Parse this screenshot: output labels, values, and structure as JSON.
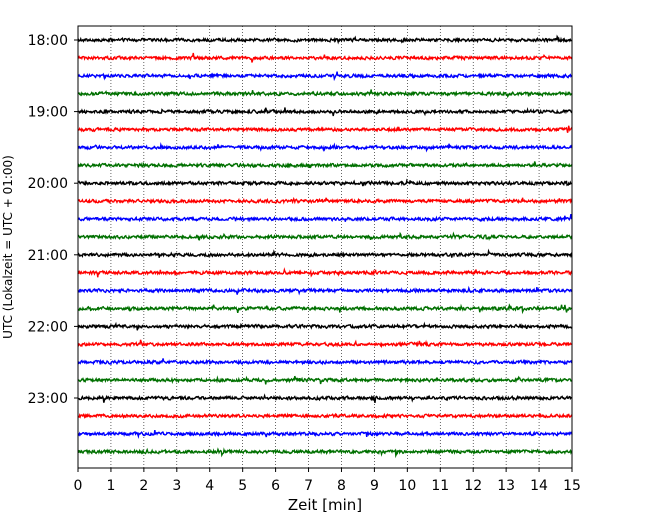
{
  "chart_data": {
    "type": "line",
    "title": "",
    "xlabel": "Zeit  [min]",
    "ylabel": "UTC (Lokalzeit = UTC + 01:00)",
    "xlim": [
      0,
      15
    ],
    "x_ticks": [
      "0",
      "1",
      "2",
      "3",
      "4",
      "5",
      "6",
      "7",
      "8",
      "9",
      "10",
      "11",
      "12",
      "13",
      "14",
      "15"
    ],
    "y_tick_labels": [
      "18:00",
      "19:00",
      "20:00",
      "21:00",
      "22:00",
      "23:00"
    ],
    "grid": "vertical-dotted",
    "trace_interval_minutes": 15,
    "trace_count": 24,
    "trace_colors": [
      "#000000",
      "#ff0000",
      "#0000ff",
      "#007000"
    ],
    "series": [
      {
        "start": "18:00",
        "color": "#000000"
      },
      {
        "start": "18:15",
        "color": "#ff0000"
      },
      {
        "start": "18:30",
        "color": "#0000ff"
      },
      {
        "start": "18:45",
        "color": "#007000"
      },
      {
        "start": "19:00",
        "color": "#000000"
      },
      {
        "start": "19:15",
        "color": "#ff0000"
      },
      {
        "start": "19:30",
        "color": "#0000ff"
      },
      {
        "start": "19:45",
        "color": "#007000"
      },
      {
        "start": "20:00",
        "color": "#000000"
      },
      {
        "start": "20:15",
        "color": "#ff0000"
      },
      {
        "start": "20:30",
        "color": "#0000ff"
      },
      {
        "start": "20:45",
        "color": "#007000"
      },
      {
        "start": "21:00",
        "color": "#000000"
      },
      {
        "start": "21:15",
        "color": "#ff0000"
      },
      {
        "start": "21:30",
        "color": "#0000ff"
      },
      {
        "start": "21:45",
        "color": "#007000"
      },
      {
        "start": "22:00",
        "color": "#000000"
      },
      {
        "start": "22:15",
        "color": "#ff0000"
      },
      {
        "start": "22:30",
        "color": "#0000ff"
      },
      {
        "start": "22:45",
        "color": "#007000"
      },
      {
        "start": "23:00",
        "color": "#000000"
      },
      {
        "start": "23:15",
        "color": "#ff0000"
      },
      {
        "start": "23:30",
        "color": "#0000ff"
      },
      {
        "start": "23:45",
        "color": "#007000"
      }
    ]
  }
}
